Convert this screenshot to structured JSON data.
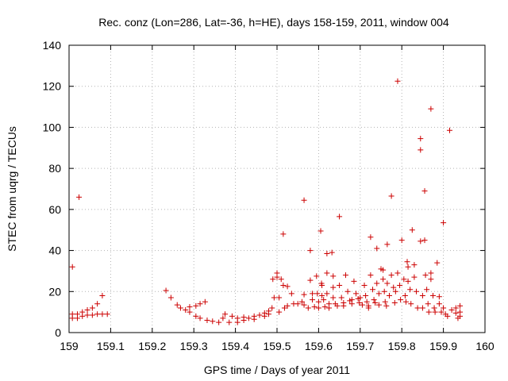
{
  "chart_data": {
    "type": "scatter",
    "title": "Rec. conz (Lon=286, Lat=-36, h=HE), days 158-159, 2011, window 004",
    "xlabel": "GPS time / Days of year 2011",
    "ylabel": "STEC from uqrg / TECUs",
    "xlim": [
      159,
      160
    ],
    "ylim": [
      0,
      140
    ],
    "xticks": [
      159,
      159.1,
      159.2,
      159.3,
      159.4,
      159.5,
      159.6,
      159.7,
      159.8,
      159.9,
      160
    ],
    "xtick_labels": [
      "159",
      "159.1",
      "159.2",
      "159.3",
      "159.4",
      "159.5",
      "159.6",
      "159.7",
      "159.8",
      "159.9",
      "160"
    ],
    "yticks": [
      0,
      20,
      40,
      60,
      80,
      100,
      120,
      140
    ],
    "ytick_labels": [
      "0",
      "20",
      "40",
      "60",
      "80",
      "100",
      "120",
      "140"
    ],
    "grid": true,
    "marker": "+",
    "color": "#cc0000",
    "series": [
      {
        "name": "STEC",
        "points": [
          [
            159.008,
            32
          ],
          [
            159.024,
            66
          ],
          [
            159.008,
            9
          ],
          [
            159.008,
            7
          ],
          [
            159.02,
            9
          ],
          [
            159.02,
            7
          ],
          [
            159.032,
            10
          ],
          [
            159.032,
            8
          ],
          [
            159.044,
            11
          ],
          [
            159.044,
            8.5
          ],
          [
            159.056,
            12
          ],
          [
            159.056,
            8.5
          ],
          [
            159.068,
            14
          ],
          [
            159.068,
            9
          ],
          [
            159.08,
            18
          ],
          [
            159.08,
            9
          ],
          [
            159.092,
            9
          ],
          [
            159.233,
            20.5
          ],
          [
            159.245,
            17
          ],
          [
            159.26,
            13.5
          ],
          [
            159.268,
            12
          ],
          [
            159.28,
            11
          ],
          [
            159.29,
            12.5
          ],
          [
            159.29,
            10
          ],
          [
            159.305,
            13
          ],
          [
            159.305,
            8
          ],
          [
            159.315,
            14
          ],
          [
            159.315,
            7
          ],
          [
            159.327,
            15
          ],
          [
            159.332,
            6
          ],
          [
            159.345,
            5.5
          ],
          [
            159.36,
            5
          ],
          [
            159.37,
            7
          ],
          [
            159.375,
            9
          ],
          [
            159.385,
            5
          ],
          [
            159.392,
            8
          ],
          [
            159.405,
            5
          ],
          [
            159.405,
            7
          ],
          [
            159.42,
            6
          ],
          [
            159.42,
            7.5
          ],
          [
            159.432,
            7
          ],
          [
            159.445,
            6.5
          ],
          [
            159.445,
            8
          ],
          [
            159.458,
            8.5
          ],
          [
            159.47,
            8
          ],
          [
            159.47,
            9.5
          ],
          [
            159.48,
            9
          ],
          [
            159.48,
            10.5
          ],
          [
            159.488,
            12
          ],
          [
            159.49,
            26
          ],
          [
            159.493,
            17
          ],
          [
            159.5,
            29
          ],
          [
            159.5,
            27
          ],
          [
            159.505,
            17
          ],
          [
            159.505,
            10
          ],
          [
            159.51,
            26
          ],
          [
            159.515,
            48
          ],
          [
            159.515,
            23
          ],
          [
            159.518,
            12
          ],
          [
            159.525,
            22.5
          ],
          [
            159.525,
            13
          ],
          [
            159.535,
            19
          ],
          [
            159.54,
            14
          ],
          [
            159.55,
            14
          ],
          [
            159.56,
            15
          ],
          [
            159.565,
            64.5
          ],
          [
            159.565,
            18.5
          ],
          [
            159.565,
            13.5
          ],
          [
            159.575,
            12
          ],
          [
            159.58,
            40
          ],
          [
            159.58,
            25.5
          ],
          [
            159.585,
            19
          ],
          [
            159.585,
            16
          ],
          [
            159.59,
            12.5
          ],
          [
            159.595,
            27.5
          ],
          [
            159.597,
            19
          ],
          [
            159.6,
            15
          ],
          [
            159.6,
            12
          ],
          [
            159.605,
            49.5
          ],
          [
            159.607,
            24
          ],
          [
            159.608,
            23
          ],
          [
            159.608,
            18
          ],
          [
            159.612,
            16
          ],
          [
            159.615,
            12.5
          ],
          [
            159.62,
            38.5
          ],
          [
            159.62,
            29
          ],
          [
            159.62,
            19
          ],
          [
            159.625,
            14
          ],
          [
            159.625,
            12
          ],
          [
            159.632,
            39
          ],
          [
            159.635,
            27.5
          ],
          [
            159.635,
            22
          ],
          [
            159.635,
            17
          ],
          [
            159.64,
            14
          ],
          [
            159.645,
            13
          ],
          [
            159.65,
            56.5
          ],
          [
            159.65,
            23
          ],
          [
            159.655,
            17
          ],
          [
            159.66,
            14.5
          ],
          [
            159.66,
            13
          ],
          [
            159.665,
            28
          ],
          [
            159.67,
            20
          ],
          [
            159.675,
            15.5
          ],
          [
            159.68,
            16
          ],
          [
            159.68,
            14
          ],
          [
            159.685,
            25
          ],
          [
            159.69,
            19
          ],
          [
            159.695,
            16.5
          ],
          [
            159.698,
            14.5
          ],
          [
            159.7,
            17
          ],
          [
            159.705,
            13.5
          ],
          [
            159.71,
            23
          ],
          [
            159.713,
            18
          ],
          [
            159.716,
            15
          ],
          [
            159.72,
            13
          ],
          [
            159.72,
            12
          ],
          [
            159.725,
            46.5
          ],
          [
            159.725,
            28
          ],
          [
            159.73,
            21
          ],
          [
            159.733,
            16
          ],
          [
            159.736,
            14.5
          ],
          [
            159.74,
            41
          ],
          [
            159.74,
            24
          ],
          [
            159.745,
            19
          ],
          [
            159.745,
            13.5
          ],
          [
            159.75,
            31
          ],
          [
            159.755,
            26
          ],
          [
            159.755,
            30.5
          ],
          [
            159.758,
            20
          ],
          [
            159.76,
            15
          ],
          [
            159.763,
            13
          ],
          [
            159.765,
            43
          ],
          [
            159.765,
            24
          ],
          [
            159.77,
            18
          ],
          [
            159.775,
            66.5
          ],
          [
            159.775,
            28
          ],
          [
            159.78,
            22
          ],
          [
            159.783,
            14.5
          ],
          [
            159.785,
            20
          ],
          [
            159.79,
            122.5
          ],
          [
            159.79,
            29
          ],
          [
            159.795,
            23
          ],
          [
            159.797,
            16
          ],
          [
            159.8,
            45
          ],
          [
            159.805,
            26
          ],
          [
            159.808,
            18
          ],
          [
            159.81,
            15
          ],
          [
            159.813,
            34.5
          ],
          [
            159.815,
            32
          ],
          [
            159.815,
            25
          ],
          [
            159.82,
            21
          ],
          [
            159.822,
            14
          ],
          [
            159.825,
            50
          ],
          [
            159.83,
            33
          ],
          [
            159.83,
            27
          ],
          [
            159.835,
            20
          ],
          [
            159.838,
            12
          ],
          [
            159.845,
            94.5
          ],
          [
            159.845,
            89
          ],
          [
            159.845,
            44.5
          ],
          [
            159.85,
            18
          ],
          [
            159.85,
            12
          ],
          [
            159.855,
            69
          ],
          [
            159.855,
            45
          ],
          [
            159.857,
            28
          ],
          [
            159.86,
            21
          ],
          [
            159.863,
            14
          ],
          [
            159.865,
            10
          ],
          [
            159.87,
            109
          ],
          [
            159.87,
            29
          ],
          [
            159.87,
            26
          ],
          [
            159.875,
            18
          ],
          [
            159.878,
            12
          ],
          [
            159.88,
            10
          ],
          [
            159.885,
            34
          ],
          [
            159.89,
            17.5
          ],
          [
            159.89,
            14
          ],
          [
            159.895,
            10
          ],
          [
            159.9,
            53.5
          ],
          [
            159.9,
            12
          ],
          [
            159.905,
            9
          ],
          [
            159.91,
            8
          ],
          [
            159.915,
            98.5
          ],
          [
            159.92,
            11
          ],
          [
            159.93,
            12
          ],
          [
            159.93,
            9.5
          ],
          [
            159.935,
            7
          ],
          [
            159.94,
            13
          ],
          [
            159.94,
            10
          ],
          [
            159.94,
            8
          ]
        ]
      }
    ]
  }
}
